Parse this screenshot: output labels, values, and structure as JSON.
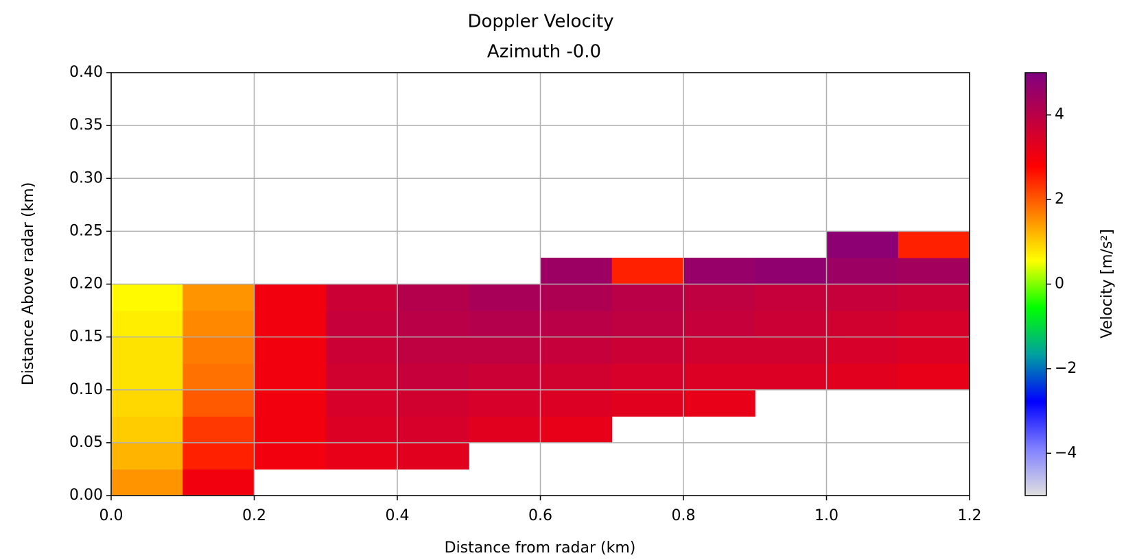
{
  "chart_data": {
    "type": "heatmap",
    "title": "Doppler Velocity",
    "subtitle": "Azimuth -0.0",
    "x_label": "Distance from radar (km)",
    "y_label": "Distance Above radar  (km)",
    "colorbar_label": "Velocity [m/s²]",
    "x_bins": [
      0,
      0.1,
      0.2,
      0.3,
      0.4,
      0.5,
      0.6,
      0.7,
      0.8,
      0.9,
      1.0,
      1.1,
      1.2
    ],
    "y_bins": [
      0,
      0.025,
      0.05,
      0.075,
      0.1,
      0.125,
      0.15,
      0.175,
      0.2,
      0.225,
      0.25
    ],
    "z": [
      [
        1.5,
        3,
        null,
        null,
        null,
        null,
        null,
        null,
        null,
        null,
        null,
        null
      ],
      [
        1.2,
        2.5,
        3,
        3.2,
        3.3,
        null,
        null,
        null,
        null,
        null,
        null,
        null
      ],
      [
        1.0,
        2.3,
        3.0,
        3.4,
        3.5,
        3.3,
        3.2,
        null,
        null,
        null,
        null,
        null
      ],
      [
        0.9,
        2.0,
        3.0,
        3.5,
        3.6,
        3.5,
        3.4,
        3.3,
        3.2,
        null,
        null,
        null
      ],
      [
        0.8,
        1.8,
        3.0,
        3.6,
        3.8,
        3.7,
        3.6,
        3.5,
        3.4,
        3.4,
        3.3,
        3.2
      ],
      [
        0.8,
        1.7,
        3.0,
        3.7,
        3.9,
        3.9,
        3.8,
        3.7,
        3.6,
        3.6,
        3.5,
        3.4
      ],
      [
        0.7,
        1.6,
        3.0,
        3.8,
        4.0,
        4.1,
        4.0,
        3.9,
        3.8,
        3.7,
        3.6,
        3.5
      ],
      [
        0.6,
        1.5,
        3.0,
        3.7,
        4.1,
        4.3,
        4.2,
        4.0,
        3.9,
        3.8,
        3.8,
        3.7
      ],
      [
        null,
        null,
        null,
        null,
        null,
        null,
        4.5,
        2.5,
        4.6,
        4.7,
        4.5,
        4.4
      ],
      [
        null,
        null,
        null,
        null,
        null,
        null,
        null,
        null,
        null,
        null,
        4.8,
        2.5
      ]
    ],
    "colormap": [
      "#e0e0e0",
      "#8080ff",
      "#0000ff",
      "#00a0a0",
      "#00ff00",
      "#ffff00",
      "#ff8000",
      "#ff0000",
      "#c00040",
      "#800080"
    ],
    "clim": [
      -5,
      5
    ],
    "cticks": [
      {
        "value": -4,
        "label": "−4"
      },
      {
        "value": -2,
        "label": "−2"
      },
      0,
      2,
      4
    ],
    "xlim": [
      0,
      1.2
    ],
    "ylim": [
      0,
      0.4
    ],
    "xticks": [
      {
        "value": 0,
        "label": "0.0"
      },
      0.2,
      0.4,
      0.6,
      0.8,
      {
        "value": 1,
        "label": "1.0"
      },
      1.2
    ],
    "yticks": [
      {
        "value": 0,
        "label": "0.00"
      },
      0.05,
      {
        "value": 0.1,
        "label": "0.10"
      },
      0.15,
      {
        "value": 0.2,
        "label": "0.20"
      },
      0.25,
      {
        "value": 0.3,
        "label": "0.30"
      },
      0.35,
      {
        "value": 0.4,
        "label": "0.40"
      }
    ],
    "grid": true
  }
}
